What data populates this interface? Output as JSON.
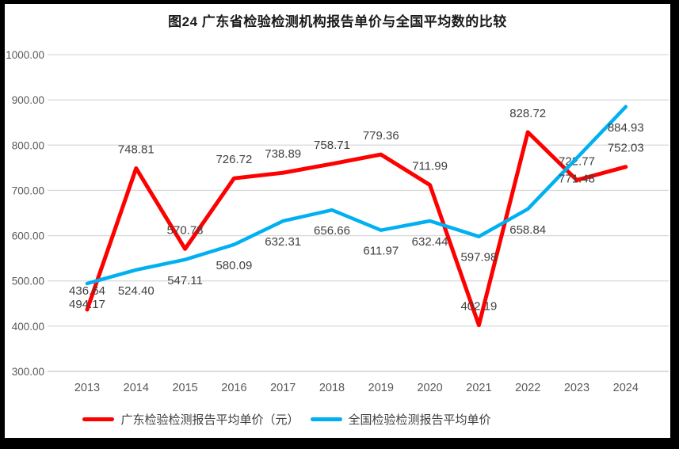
{
  "title": "图24  广东省检验检测机构报告单价与全国平均数的比较",
  "colors": {
    "guangdong_line": "#fe0000",
    "national_line": "#00b0f0",
    "gridline": "#d9d9d9",
    "axis_line": "#c6c6c6",
    "axis_label": "#595959",
    "data_label": "#3f3f3f",
    "frame_border": "#000000"
  },
  "chart_data": {
    "type": "line",
    "categories": [
      "2013",
      "2014",
      "2015",
      "2016",
      "2017",
      "2018",
      "2019",
      "2020",
      "2021",
      "2022",
      "2023",
      "2024"
    ],
    "series": [
      {
        "name": "广东检验检测报告平均单价（元）",
        "color": "#fe0000",
        "label_side": "above",
        "values": [
          436.64,
          748.81,
          570.78,
          726.72,
          738.89,
          758.71,
          779.36,
          711.99,
          402.19,
          828.72,
          722.77,
          752.03
        ]
      },
      {
        "name": "全国检验检测报告平均单价",
        "color": "#00b0f0",
        "label_side": "below",
        "values": [
          494.17,
          524.4,
          547.11,
          580.09,
          632.31,
          656.66,
          611.97,
          632.44,
          597.98,
          658.84,
          771.48,
          884.93
        ]
      }
    ],
    "title": "图24  广东省检验检测机构报告单价与全国平均数的比较",
    "xlabel": "",
    "ylabel": "",
    "ylim": [
      300,
      1000
    ],
    "yticks": [
      300,
      400,
      500,
      600,
      700,
      800,
      900,
      1000
    ],
    "ytick_decimals": 2,
    "grid": true,
    "data_labels": true,
    "legend_position": "bottom"
  }
}
